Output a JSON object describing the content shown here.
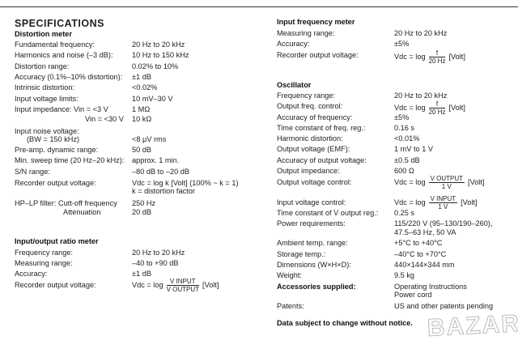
{
  "title": "SPECIFICATIONS",
  "distortion": {
    "heading": "Distortion meter",
    "rows": [
      [
        "Fundamental frequency:",
        "20 Hz to 20 kHz"
      ],
      [
        "Harmonics and noise (–3 dB):",
        "10 Hz to 150 kHz"
      ],
      [
        "Distortion range:",
        "0.02% to 10%"
      ],
      [
        "Accuracy (0.1%–10% distortion):",
        "±1 dB"
      ],
      [
        "Intrinsic distortion:",
        "<0.02%"
      ],
      [
        "Input voltage limits:",
        "10 mV–30 V"
      ],
      [
        "Input impedance: Vin = <3 V",
        "1 MΩ"
      ],
      [
        "Vin = <30 V",
        "10 kΩ"
      ],
      [
        "Input noise voltage:",
        ""
      ],
      [
        "(BW = 150 kHz)",
        "<8 μV rms"
      ],
      [
        "Pre-amp. dynamic range:",
        "50 dB"
      ],
      [
        "Min. sweep time (20 Hz–20 kHz):",
        "approx. 1 min."
      ],
      [
        "S/N range:",
        "–80 dB to –20 dB"
      ],
      [
        "Recorder output voltage:",
        "Vdc = log k [Volt] (100% ~ k = 1)"
      ],
      [
        "",
        "k = distortion factor"
      ],
      [
        "HP–LP filter: Cutt-off frequency",
        "250 Hz"
      ],
      [
        "Attenuation",
        "20 dB"
      ]
    ]
  },
  "ratio": {
    "heading": "Input/output ratio meter",
    "rows": [
      [
        "Frequency range:",
        "20 Hz to 20 kHz"
      ],
      [
        "Measuring range:",
        "–40 to +90 dB"
      ],
      [
        "Accuracy:",
        "±1 dB"
      ],
      [
        "Recorder output voltage:",
        "Vdc = log"
      ]
    ],
    "frac_num": "V INPUT",
    "frac_den": "V OUTPUT",
    "unit": "[Volt]"
  },
  "freqmeter": {
    "heading": "Input frequency meter",
    "rows": [
      [
        "Measuring range:",
        "20 Hz to 20 kHz"
      ],
      [
        "Accuracy:",
        "±5%"
      ],
      [
        "Recorder output voltage:",
        "Vdc = log"
      ]
    ],
    "frac_num": "f",
    "frac_den": "20 Hz",
    "unit": "[Volt]"
  },
  "oscillator": {
    "heading": "Oscillator",
    "rows": [
      [
        "Frequency range:",
        "20 Hz to 20 kHz"
      ],
      [
        "Output freq. control:",
        "Vdc = log"
      ],
      [
        "Accuracy of frequency:",
        "±5%"
      ],
      [
        "Time constant of freq. reg.:",
        "0.16 s"
      ],
      [
        "Harmonic distortion:",
        "<0.01%"
      ],
      [
        "Output voltage (EMF):",
        "1 mV to 1 V"
      ],
      [
        "Accuracy of output voltage:",
        "±0.5 dB"
      ],
      [
        "Output impedance:",
        "600 Ω"
      ],
      [
        "Output voltage control:",
        "Vdc = log"
      ],
      [
        "Input voltage control:",
        "Vdc = log"
      ],
      [
        "Time constant of V output reg.:",
        "0.25 s"
      ],
      [
        "Power requirements:",
        "115/220 V (95–130/190–260),"
      ],
      [
        "",
        "47.5–63 Hz, 50 VA"
      ],
      [
        "Ambient temp. range:",
        "+5°C to +40°C"
      ],
      [
        "Storage temp.:",
        "–40°C to +70°C"
      ],
      [
        "Dimensions (W×H×D):",
        "440×144×344 mm"
      ],
      [
        "Weight:",
        "9.5 kg"
      ],
      [
        "Accessories supplied:",
        "Operating Instructions"
      ],
      [
        "",
        "Power cord"
      ],
      [
        "Patents:",
        "US and other patents pending"
      ]
    ],
    "f_num": "f",
    "f_den": "20 Hz",
    "ov_num": "V OUTPUT",
    "ov_den": "1 V",
    "iv_num": "V INPUT",
    "iv_den": "1 V",
    "unit": "[Volt]"
  },
  "notice": "Data subject to change without notice.",
  "watermark": "BAZAR"
}
